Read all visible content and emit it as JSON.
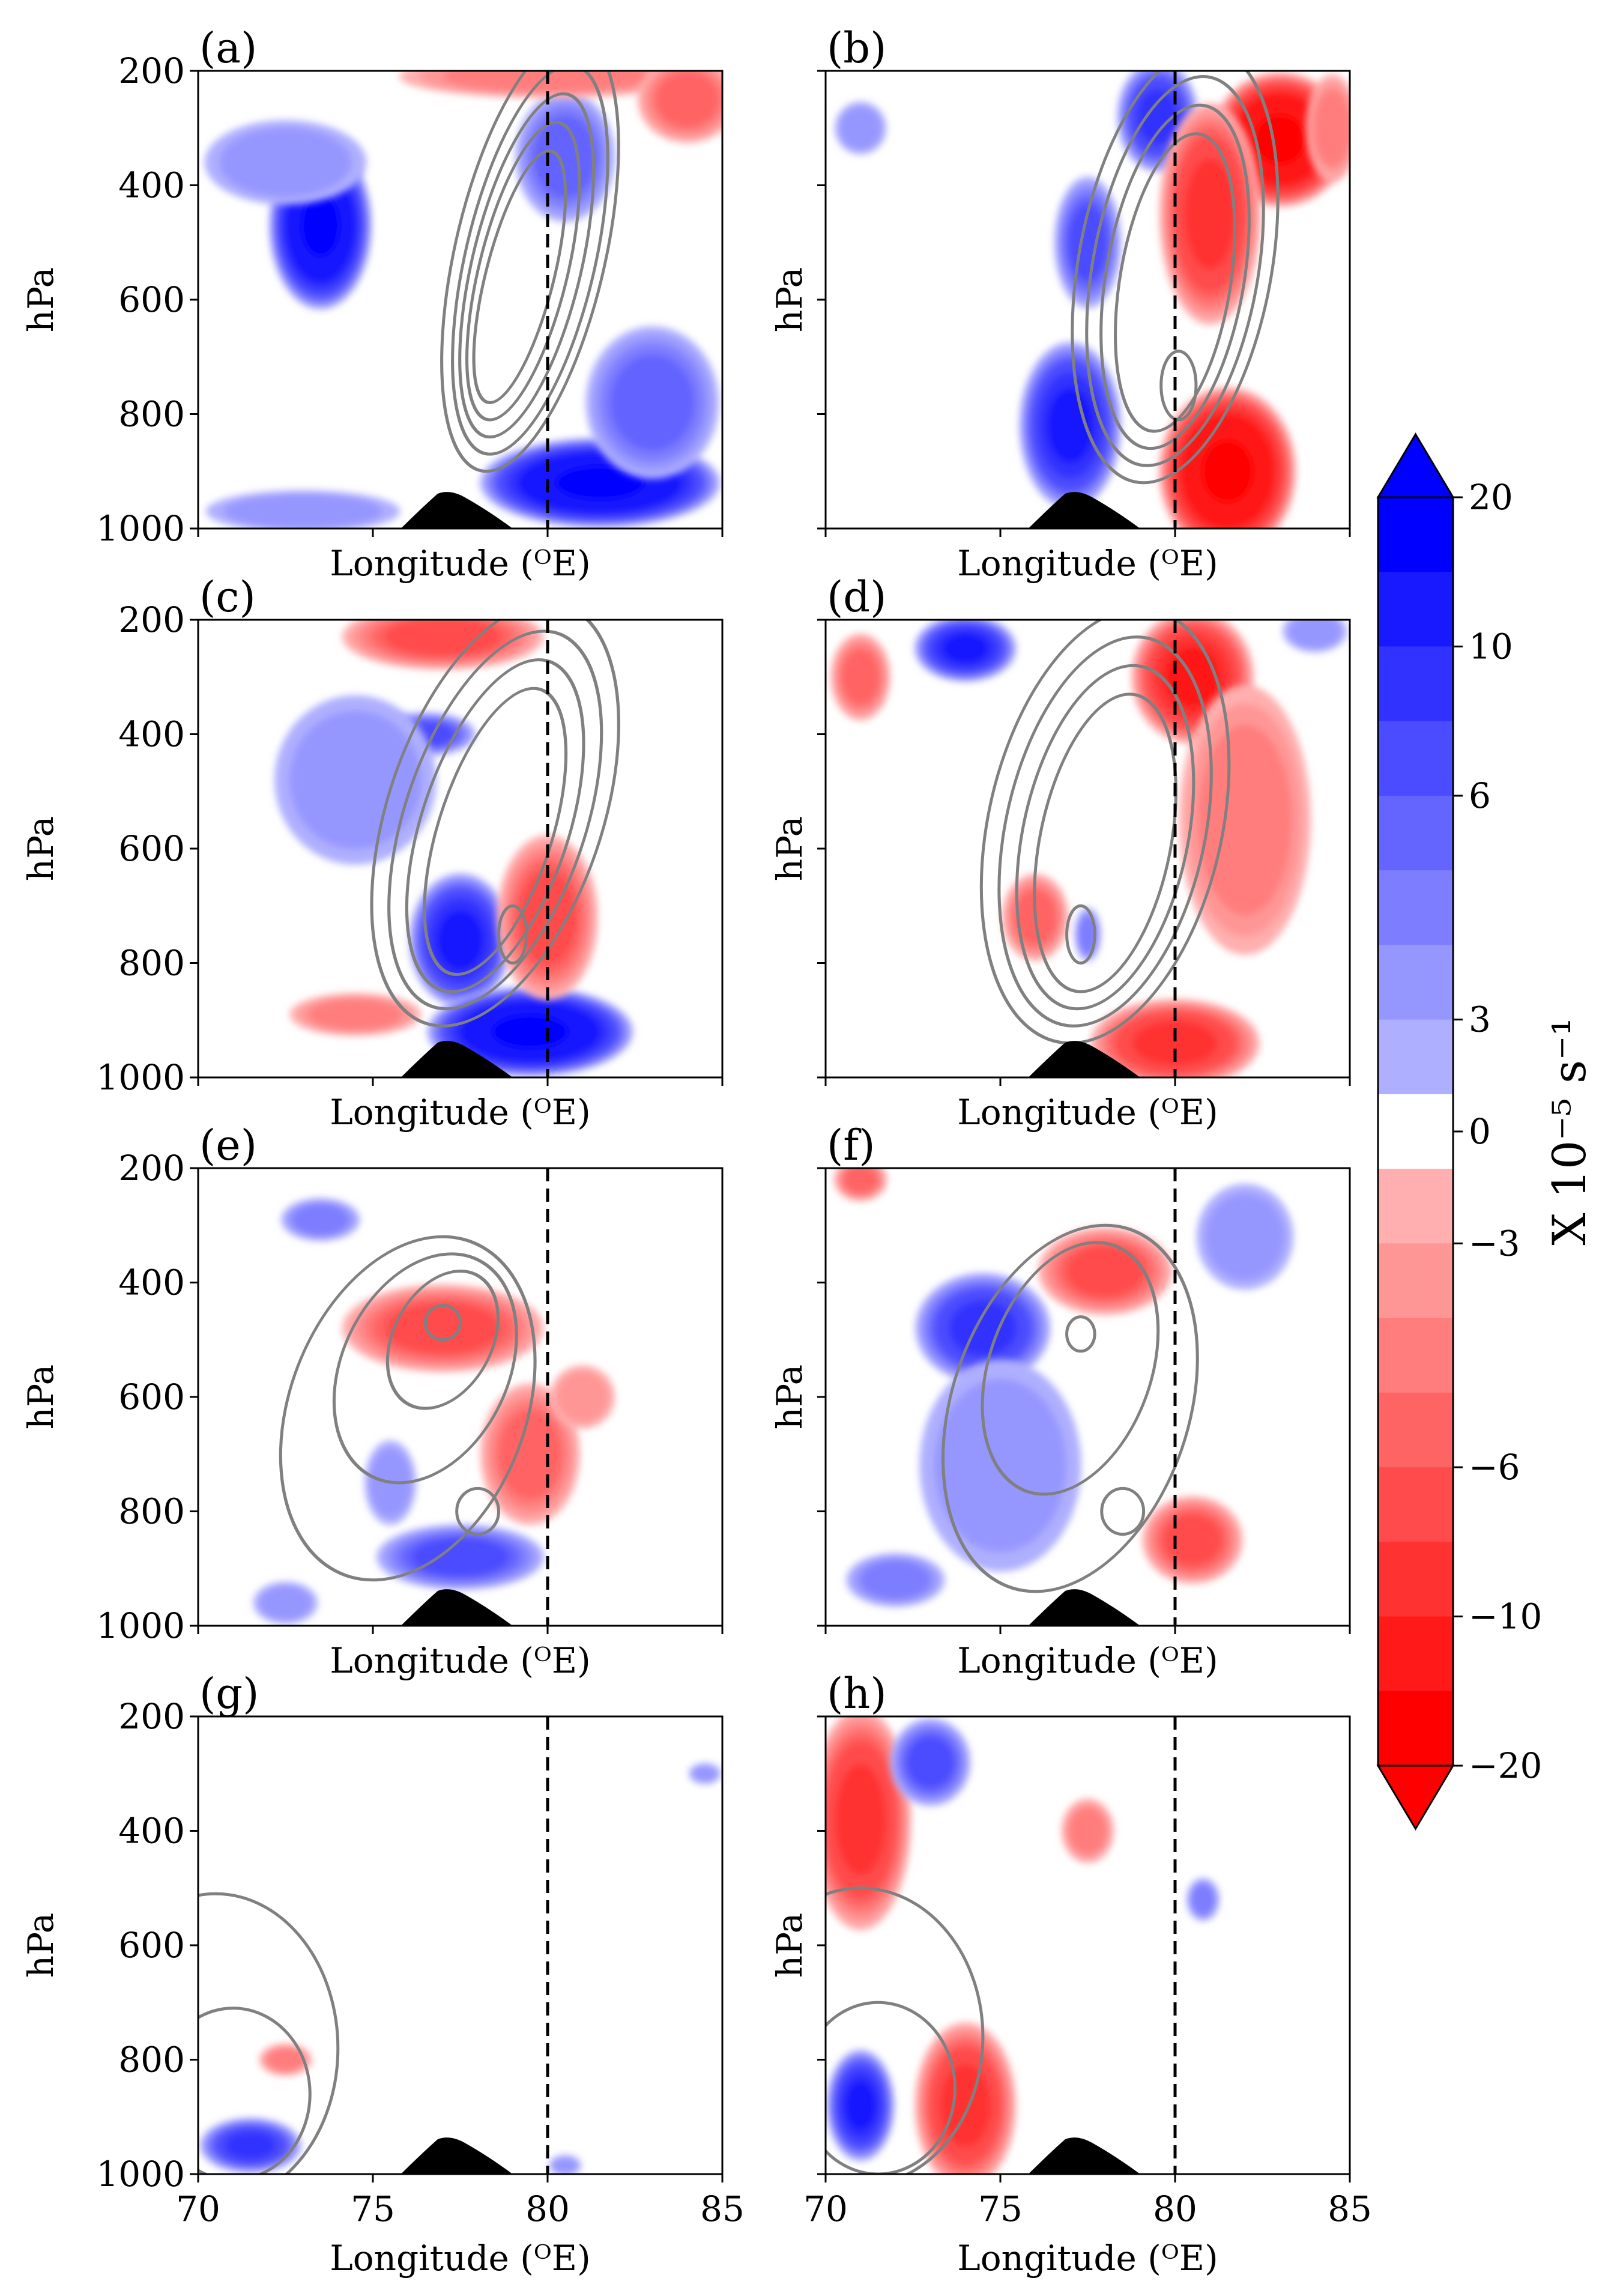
{
  "figure": {
    "xlabel": "Longitude (ᴼE)",
    "ylabel": "hPa",
    "colorbar": {
      "label": "X 10⁻⁵ s⁻¹",
      "tick_labels": [
        "20",
        "10",
        "6",
        "3",
        "0",
        "−3",
        "−6",
        "−10",
        "−20"
      ]
    }
  },
  "chart_data": {
    "type": "contour",
    "title": "",
    "xlabel": "Longitude (ᴼE)",
    "ylabel": "hPa",
    "xlim": [
      70,
      85
    ],
    "ylim": [
      1000,
      200
    ],
    "x_ticks": [
      "70",
      "75",
      "80",
      "85"
    ],
    "y_ticks": [
      "200",
      "400",
      "600",
      "800",
      "1000"
    ],
    "reference_longitude": 80,
    "colorbar": {
      "label": "X 10⁻⁵ s⁻¹",
      "levels": [
        -20,
        -15,
        -10,
        -8,
        -6,
        -5,
        -4,
        -3,
        -2,
        2,
        3,
        4,
        5,
        6,
        8,
        10,
        15,
        20
      ],
      "tick_values": [
        20,
        10,
        6,
        3,
        0,
        -3,
        -6,
        -10,
        -20
      ],
      "negative_color": "#ff0000",
      "positive_color": "#0000ff",
      "extend": "both"
    },
    "contour_line_color": "#808080",
    "terrain_color": "#000000",
    "panels": [
      {
        "label": "(a)",
        "show_x_ticks": false,
        "show_y_ticks": true,
        "blobs": [
          {
            "lon": 73.5,
            "p": 470,
            "rx": 1.5,
            "rp": 150,
            "v": 15
          },
          {
            "lon": 72.5,
            "p": 360,
            "rx": 2.5,
            "rp": 80,
            "v": 3
          },
          {
            "lon": 80.5,
            "p": 350,
            "rx": 1.5,
            "rp": 120,
            "v": 5
          },
          {
            "lon": 81.5,
            "p": 920,
            "rx": 3.5,
            "rp": 80,
            "v": 15
          },
          {
            "lon": 83.0,
            "p": 780,
            "rx": 2.0,
            "rp": 140,
            "v": 5
          },
          {
            "lon": 73.0,
            "p": 970,
            "rx": 3.0,
            "rp": 40,
            "v": 3
          },
          {
            "lon": 80.0,
            "p": 210,
            "rx": 4.5,
            "rp": 40,
            "v": -4
          },
          {
            "lon": 84.0,
            "p": 250,
            "rx": 1.5,
            "rp": 80,
            "v": -5
          }
        ],
        "contours": [
          {
            "lon": 79.5,
            "p": 520,
            "rx": 2.2,
            "rp": 380,
            "lean": -2.5
          },
          {
            "lon": 79.5,
            "p": 530,
            "rx": 1.9,
            "rp": 340,
            "lean": -2.3
          },
          {
            "lon": 79.4,
            "p": 540,
            "rx": 1.6,
            "rp": 300,
            "lean": -2.1
          },
          {
            "lon": 79.3,
            "p": 550,
            "rx": 1.3,
            "rp": 260,
            "lean": -1.9
          },
          {
            "lon": 79.2,
            "p": 560,
            "rx": 1.0,
            "rp": 220,
            "lean": -1.7
          }
        ]
      },
      {
        "label": "(b)",
        "show_x_ticks": false,
        "show_y_ticks": false,
        "blobs": [
          {
            "lon": 79.5,
            "p": 280,
            "rx": 1.2,
            "rp": 100,
            "v": 8
          },
          {
            "lon": 77.5,
            "p": 500,
            "rx": 1.0,
            "rp": 120,
            "v": 6
          },
          {
            "lon": 77.0,
            "p": 820,
            "rx": 1.5,
            "rp": 150,
            "v": 10
          },
          {
            "lon": 71.0,
            "p": 300,
            "rx": 0.8,
            "rp": 50,
            "v": 3
          },
          {
            "lon": 83.0,
            "p": 320,
            "rx": 2.0,
            "rp": 120,
            "v": -15
          },
          {
            "lon": 81.0,
            "p": 450,
            "rx": 1.5,
            "rp": 200,
            "v": -8
          },
          {
            "lon": 81.5,
            "p": 900,
            "rx": 2.0,
            "rp": 150,
            "v": -15
          },
          {
            "lon": 84.5,
            "p": 300,
            "rx": 0.8,
            "rp": 100,
            "v": -4
          }
        ],
        "contours": [
          {
            "lon": 80.0,
            "p": 540,
            "rx": 2.8,
            "rp": 380,
            "lean": -1.8
          },
          {
            "lon": 80.0,
            "p": 550,
            "rx": 2.4,
            "rp": 340,
            "lean": -1.6
          },
          {
            "lon": 80.0,
            "p": 560,
            "rx": 2.0,
            "rp": 300,
            "lean": -1.4
          },
          {
            "lon": 80.0,
            "p": 570,
            "rx": 1.6,
            "rp": 260,
            "lean": -1.2
          },
          {
            "lon": 80.1,
            "p": 750,
            "rx": 0.5,
            "rp": 60,
            "lean": 0
          }
        ]
      },
      {
        "label": "(c)",
        "show_x_ticks": false,
        "show_y_ticks": true,
        "blobs": [
          {
            "lon": 76.5,
            "p": 400,
            "rx": 1.5,
            "rp": 40,
            "v": 6
          },
          {
            "lon": 74.5,
            "p": 480,
            "rx": 2.5,
            "rp": 160,
            "v": 3
          },
          {
            "lon": 77.5,
            "p": 760,
            "rx": 1.5,
            "rp": 120,
            "v": 10
          },
          {
            "lon": 79.5,
            "p": 920,
            "rx": 3.0,
            "rp": 80,
            "v": 15
          },
          {
            "lon": 77.0,
            "p": 230,
            "rx": 3.0,
            "rp": 60,
            "v": -6
          },
          {
            "lon": 80.0,
            "p": 720,
            "rx": 1.5,
            "rp": 150,
            "v": -6
          },
          {
            "lon": 74.5,
            "p": 890,
            "rx": 2.0,
            "rp": 40,
            "v": -4
          }
        ],
        "contours": [
          {
            "lon": 78.5,
            "p": 540,
            "rx": 3.2,
            "rp": 370,
            "lean": -3.0
          },
          {
            "lon": 78.5,
            "p": 550,
            "rx": 2.7,
            "rp": 330,
            "lean": -2.8
          },
          {
            "lon": 78.5,
            "p": 560,
            "rx": 2.2,
            "rp": 290,
            "lean": -2.5
          },
          {
            "lon": 78.5,
            "p": 570,
            "rx": 1.7,
            "rp": 250,
            "lean": -2.2
          },
          {
            "lon": 79.0,
            "p": 750,
            "rx": 0.4,
            "rp": 50,
            "lean": 0
          }
        ]
      },
      {
        "label": "(d)",
        "show_x_ticks": false,
        "show_y_ticks": false,
        "blobs": [
          {
            "lon": 74.0,
            "p": 250,
            "rx": 1.5,
            "rp": 60,
            "v": 10
          },
          {
            "lon": 84.0,
            "p": 220,
            "rx": 1.0,
            "rp": 40,
            "v": 3
          },
          {
            "lon": 80.5,
            "p": 300,
            "rx": 1.8,
            "rp": 120,
            "v": -10
          },
          {
            "lon": 82.0,
            "p": 550,
            "rx": 2.0,
            "rp": 250,
            "v": -4
          },
          {
            "lon": 71.0,
            "p": 300,
            "rx": 0.9,
            "rp": 80,
            "v": -5
          },
          {
            "lon": 76.0,
            "p": 720,
            "rx": 1.0,
            "rp": 80,
            "v": -5
          },
          {
            "lon": 80.0,
            "p": 940,
            "rx": 2.5,
            "rp": 80,
            "v": -8
          },
          {
            "lon": 77.5,
            "p": 750,
            "rx": 0.4,
            "rp": 50,
            "v": 4
          }
        ],
        "contours": [
          {
            "lon": 78.0,
            "p": 560,
            "rx": 3.4,
            "rp": 380,
            "lean": -2.0
          },
          {
            "lon": 78.0,
            "p": 570,
            "rx": 2.9,
            "rp": 340,
            "lean": -1.8
          },
          {
            "lon": 78.0,
            "p": 580,
            "rx": 2.4,
            "rp": 300,
            "lean": -1.6
          },
          {
            "lon": 78.0,
            "p": 590,
            "rx": 1.9,
            "rp": 260,
            "lean": -1.4
          },
          {
            "lon": 77.3,
            "p": 750,
            "rx": 0.4,
            "rp": 50,
            "lean": 0
          }
        ]
      },
      {
        "label": "(e)",
        "show_x_ticks": false,
        "show_y_ticks": true,
        "blobs": [
          {
            "lon": 73.5,
            "p": 290,
            "rx": 1.2,
            "rp": 40,
            "v": 4
          },
          {
            "lon": 75.5,
            "p": 750,
            "rx": 0.8,
            "rp": 80,
            "v": 3
          },
          {
            "lon": 77.5,
            "p": 880,
            "rx": 2.5,
            "rp": 60,
            "v": 6
          },
          {
            "lon": 72.5,
            "p": 960,
            "rx": 1.0,
            "rp": 40,
            "v": 3
          },
          {
            "lon": 77.0,
            "p": 480,
            "rx": 3.0,
            "rp": 80,
            "v": -6
          },
          {
            "lon": 79.5,
            "p": 700,
            "rx": 1.5,
            "rp": 130,
            "v": -5
          },
          {
            "lon": 81.0,
            "p": 600,
            "rx": 1.0,
            "rp": 60,
            "v": -3
          }
        ],
        "contours": [
          {
            "lon": 76.0,
            "p": 620,
            "rx": 3.5,
            "rp": 300,
            "lean": -2.0
          },
          {
            "lon": 76.5,
            "p": 550,
            "rx": 2.5,
            "rp": 200,
            "lean": -1.5
          },
          {
            "lon": 77.0,
            "p": 500,
            "rx": 1.5,
            "rp": 120,
            "lean": -1.0
          },
          {
            "lon": 77.0,
            "p": 470,
            "rx": 0.5,
            "rp": 30,
            "lean": 0
          },
          {
            "lon": 78.0,
            "p": 800,
            "rx": 0.6,
            "rp": 40,
            "lean": 0
          }
        ]
      },
      {
        "label": "(f)",
        "show_x_ticks": false,
        "show_y_ticks": false,
        "blobs": [
          {
            "lon": 74.5,
            "p": 480,
            "rx": 2.0,
            "rp": 100,
            "v": 8
          },
          {
            "lon": 75.0,
            "p": 720,
            "rx": 2.5,
            "rp": 200,
            "v": 3
          },
          {
            "lon": 72.0,
            "p": 920,
            "rx": 1.5,
            "rp": 50,
            "v": 4
          },
          {
            "lon": 82.0,
            "p": 320,
            "rx": 1.5,
            "rp": 100,
            "v": 3
          },
          {
            "lon": 78.0,
            "p": 380,
            "rx": 2.0,
            "rp": 80,
            "v": -6
          },
          {
            "lon": 71.0,
            "p": 220,
            "rx": 0.8,
            "rp": 40,
            "v": -5
          },
          {
            "lon": 80.5,
            "p": 850,
            "rx": 1.5,
            "rp": 80,
            "v": -6
          }
        ],
        "contours": [
          {
            "lon": 77.0,
            "p": 620,
            "rx": 3.5,
            "rp": 320,
            "lean": -2.0
          },
          {
            "lon": 77.0,
            "p": 550,
            "rx": 2.4,
            "rp": 220,
            "lean": -1.5
          },
          {
            "lon": 77.3,
            "p": 490,
            "rx": 0.4,
            "rp": 30,
            "lean": 0
          },
          {
            "lon": 78.5,
            "p": 800,
            "rx": 0.6,
            "rp": 40,
            "lean": 0
          }
        ]
      },
      {
        "label": "(g)",
        "show_x_ticks": true,
        "show_y_ticks": true,
        "blobs": [
          {
            "lon": 71.5,
            "p": 950,
            "rx": 1.5,
            "rp": 50,
            "v": 8
          },
          {
            "lon": 72.5,
            "p": 800,
            "rx": 0.8,
            "rp": 30,
            "v": -4
          },
          {
            "lon": 84.5,
            "p": 300,
            "rx": 0.5,
            "rp": 20,
            "v": 3
          },
          {
            "lon": 80.5,
            "p": 985,
            "rx": 0.5,
            "rp": 20,
            "v": 3
          }
        ],
        "contours": [
          {
            "lon": 70.5,
            "p": 780,
            "rx": 3.5,
            "rp": 270,
            "lean": 0
          },
          {
            "lon": 71.0,
            "p": 860,
            "rx": 2.2,
            "rp": 150,
            "lean": 0
          }
        ]
      },
      {
        "label": "(h)",
        "show_x_ticks": true,
        "show_y_ticks": false,
        "blobs": [
          {
            "lon": 71.0,
            "p": 380,
            "rx": 1.5,
            "rp": 200,
            "v": -8
          },
          {
            "lon": 74.0,
            "p": 880,
            "rx": 1.5,
            "rp": 150,
            "v": -8
          },
          {
            "lon": 77.5,
            "p": 400,
            "rx": 0.8,
            "rp": 60,
            "v": -4
          },
          {
            "lon": 73.0,
            "p": 280,
            "rx": 1.2,
            "rp": 80,
            "v": 6
          },
          {
            "lon": 71.0,
            "p": 880,
            "rx": 1.0,
            "rp": 100,
            "v": 10
          },
          {
            "lon": 80.8,
            "p": 520,
            "rx": 0.5,
            "rp": 40,
            "v": 4
          }
        ],
        "contours": [
          {
            "lon": 71.0,
            "p": 760,
            "rx": 3.5,
            "rp": 260,
            "lean": 0
          },
          {
            "lon": 71.5,
            "p": 850,
            "rx": 2.2,
            "rp": 150,
            "lean": 0
          }
        ]
      }
    ]
  }
}
